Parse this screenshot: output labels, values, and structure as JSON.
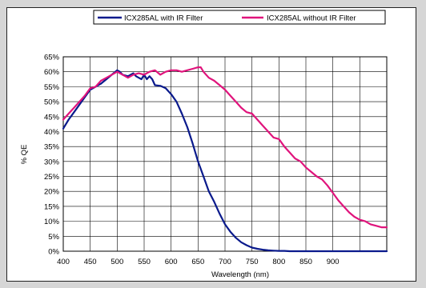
{
  "chart_data": {
    "type": "line",
    "title": "",
    "xlabel": "Wavelength (nm)",
    "ylabel": "% QE",
    "xlim": [
      400,
      1000
    ],
    "ylim": [
      0,
      65
    ],
    "x_ticks": [
      400,
      450,
      500,
      550,
      600,
      650,
      700,
      750,
      800,
      850,
      900
    ],
    "y_ticks": [
      "0%",
      "5%",
      "10%",
      "15%",
      "20%",
      "25%",
      "30%",
      "35%",
      "40%",
      "45%",
      "50%",
      "55%",
      "60%",
      "65%"
    ],
    "grid": true,
    "legend_position": "top",
    "series": [
      {
        "name": "ICX285AL with IR Filter",
        "color": "#0a1a8c",
        "x": [
          400,
          410,
          420,
          430,
          440,
          450,
          460,
          470,
          480,
          490,
          500,
          505,
          510,
          520,
          530,
          535,
          540,
          545,
          550,
          555,
          560,
          565,
          570,
          580,
          590,
          600,
          610,
          620,
          630,
          640,
          650,
          660,
          670,
          680,
          690,
          700,
          710,
          720,
          730,
          740,
          750,
          760,
          770,
          780,
          790,
          800,
          810,
          820,
          830,
          840,
          850,
          860,
          870,
          880,
          900,
          950,
          1000
        ],
        "y": [
          41,
          44,
          46.5,
          49,
          51.5,
          54,
          55,
          56,
          57.5,
          59,
          60.5,
          60,
          59,
          58.5,
          59.5,
          58.5,
          58,
          57.5,
          59,
          57.5,
          58.5,
          57.5,
          55.5,
          55.3,
          54.5,
          52.5,
          50,
          46,
          41.5,
          36,
          30,
          25,
          20,
          16.5,
          12.5,
          9,
          6.5,
          4.5,
          3,
          2,
          1.2,
          0.8,
          0.5,
          0.3,
          0.2,
          0.1,
          0.1,
          0,
          0,
          0,
          0,
          0,
          0,
          0,
          0,
          0,
          0
        ]
      },
      {
        "name": "ICX285AL without IR Filter",
        "color": "#e0147c",
        "x": [
          400,
          410,
          420,
          430,
          440,
          450,
          460,
          470,
          480,
          490,
          500,
          510,
          520,
          530,
          540,
          550,
          560,
          570,
          580,
          590,
          600,
          610,
          620,
          630,
          640,
          650,
          655,
          660,
          670,
          680,
          690,
          700,
          710,
          720,
          730,
          740,
          750,
          760,
          770,
          780,
          790,
          800,
          810,
          820,
          830,
          840,
          850,
          860,
          870,
          880,
          890,
          900,
          910,
          920,
          930,
          940,
          950,
          960,
          970,
          980,
          990,
          1000
        ],
        "y": [
          44,
          46,
          48,
          50,
          52,
          54.5,
          55,
          57,
          58,
          59,
          60,
          59,
          58,
          59,
          59.5,
          59,
          60,
          60.5,
          59,
          60,
          60.5,
          60.5,
          60,
          60.5,
          61,
          61.5,
          61.5,
          60,
          58,
          57,
          55.5,
          54,
          52,
          50,
          48,
          46.5,
          46,
          44,
          42,
          40,
          38,
          37.5,
          35,
          33,
          31,
          30,
          28,
          26.5,
          25,
          24,
          22,
          19.5,
          17,
          15,
          13,
          11.5,
          10.5,
          10,
          9,
          8.5,
          8,
          8
        ]
      }
    ]
  }
}
